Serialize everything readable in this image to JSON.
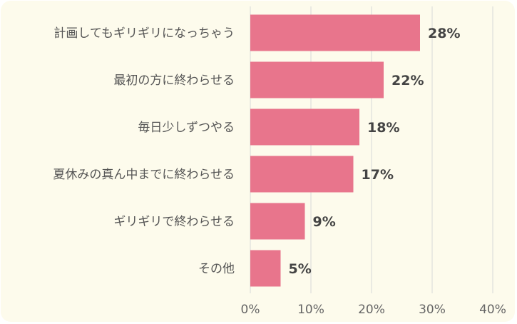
{
  "chart_data": {
    "type": "bar",
    "orientation": "horizontal",
    "categories": [
      "計画してもギリギリになっちゃう",
      "最初の方に終わらせる",
      "毎日少しずつやる",
      "夏休みの真ん中までに終わらせる",
      "ギリギリで終わらせる",
      "その他"
    ],
    "values": [
      28,
      22,
      18,
      17,
      9,
      5
    ],
    "value_labels": [
      "28%",
      "22%",
      "18%",
      "17%",
      "9%",
      "5%"
    ],
    "xlim": [
      0,
      40
    ],
    "xticks": [
      0,
      10,
      20,
      30,
      40
    ],
    "xtick_labels": [
      "0%",
      "10%",
      "20%",
      "30%",
      "40%"
    ],
    "grid": "vertical",
    "legend": "none",
    "colors": {
      "bar": "#e8758c",
      "background": "#fdfbec"
    }
  }
}
